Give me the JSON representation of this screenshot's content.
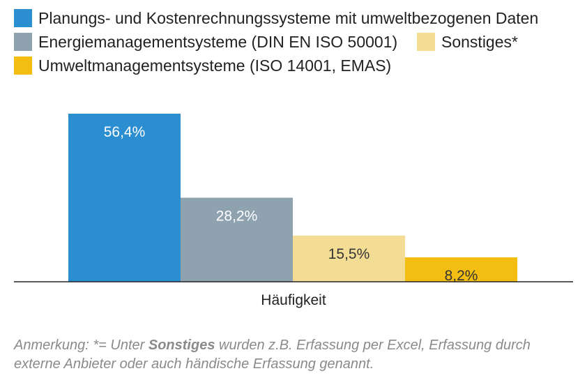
{
  "chart_data": {
    "type": "bar",
    "xlabel": "Häufigkeit",
    "categories": [
      "Häufigkeit"
    ],
    "ylim": [
      0,
      60
    ],
    "legend_position": "top",
    "series": [
      {
        "name": "Planungs- und Kostenrechnungssysteme mit umweltbezogenen Daten",
        "values": [
          56.4
        ],
        "label": "56,4%",
        "color": "#2b8ed1",
        "label_color": "#ffffff"
      },
      {
        "name": "Energiemanagementsysteme (DIN EN ISO 50001)",
        "values": [
          28.2
        ],
        "label": "28,2%",
        "color": "#8fa2b0",
        "label_color": "#ffffff"
      },
      {
        "name": "Sonstiges*",
        "values": [
          15.5
        ],
        "label": "15,5%",
        "color": "#f3dc94",
        "label_color": "#333333"
      },
      {
        "name": "Umweltmanagementsysteme (ISO 14001, EMAS)",
        "values": [
          8.2
        ],
        "label": "8,2%",
        "color": "#f3be11",
        "label_color": "#333333"
      }
    ]
  },
  "note": {
    "prefix": "Anmerkung: *= Unter ",
    "bold": "Sonstiges",
    "suffix": " wurden z.B. Erfassung per Excel, Erfassung durch externe Anbieter oder auch händische Erfassung genannt."
  }
}
